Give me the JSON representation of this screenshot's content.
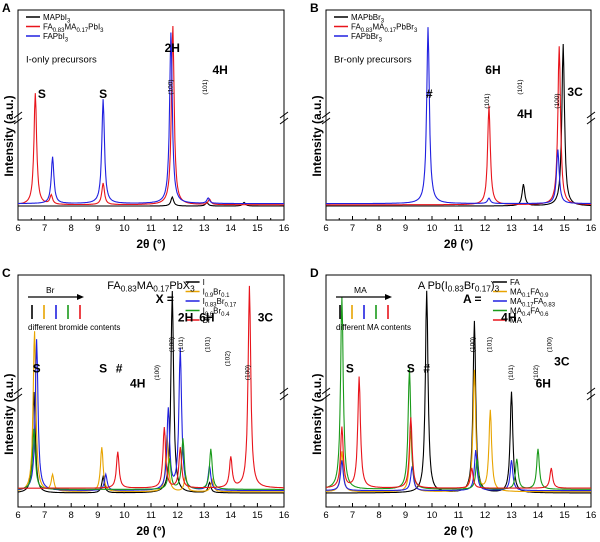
{
  "chart_data": [
    {
      "type": "line",
      "panel_label": "A",
      "xlabel": "2θ (°)",
      "ylabel": "Intensity (a.u.)",
      "xlim": [
        6,
        16
      ],
      "x_ticks": [
        "6",
        "7",
        "8",
        "9",
        "10",
        "11",
        "12",
        "13",
        "14",
        "15",
        "16"
      ],
      "axis_break": true,
      "legend": {
        "position": "top-left",
        "entries": [
          "MAPbI3",
          "FA0.83MA0.17PbI3",
          "FAPbI3"
        ]
      },
      "note": "I-only precursors",
      "series": [
        {
          "name": "MAPbI3",
          "color": "#000000",
          "peaks": [
            {
              "x": 11.8,
              "h": 0.05
            },
            {
              "x": 13.1,
              "h": 0.02
            },
            {
              "x": 14.5,
              "h": 0.02
            }
          ]
        },
        {
          "name": "FA0.83MA0.17PbI3",
          "color": "#e8141b",
          "peaks": [
            {
              "x": 6.65,
              "h": 0.62
            },
            {
              "x": 7.25,
              "h": 0.05
            },
            {
              "x": 9.2,
              "h": 0.12
            },
            {
              "x": 11.82,
              "h": 1.0
            },
            {
              "x": 13.2,
              "h": 0.03
            }
          ]
        },
        {
          "name": "FAPbI3",
          "color": "#2020e0",
          "peaks": [
            {
              "x": 7.3,
              "h": 0.26
            },
            {
              "x": 9.2,
              "h": 0.58
            },
            {
              "x": 11.75,
              "h": 0.95
            },
            {
              "x": 13.15,
              "h": 0.03
            }
          ]
        }
      ],
      "annotations": [
        {
          "text": "2H",
          "x": 11.8
        },
        {
          "text": "(100)",
          "x": 11.8
        },
        {
          "text": "S",
          "x": 6.9
        },
        {
          "text": "S",
          "x": 9.2
        },
        {
          "text": "(101)",
          "x": 13.1
        },
        {
          "text": "4H",
          "x": 13.6
        }
      ]
    },
    {
      "type": "line",
      "panel_label": "B",
      "xlabel": "2θ (°)",
      "ylabel": "Intensity (a.u.)",
      "xlim": [
        6,
        16
      ],
      "x_ticks": [
        "6",
        "7",
        "8",
        "9",
        "10",
        "11",
        "12",
        "13",
        "14",
        "15",
        "16"
      ],
      "axis_break": true,
      "legend": {
        "position": "top-left",
        "entries": [
          "MAPbBr3",
          "FA0.83MA0.17PbBr3",
          "FAPbBr3"
        ]
      },
      "note": "Br-only precursors",
      "series": [
        {
          "name": "MAPbBr3",
          "color": "#000000",
          "peaks": [
            {
              "x": 13.45,
              "h": 0.12
            },
            {
              "x": 14.95,
              "h": 0.9
            }
          ]
        },
        {
          "name": "FA0.83MA0.17PbBr3",
          "color": "#e8141b",
          "peaks": [
            {
              "x": 12.15,
              "h": 0.55
            },
            {
              "x": 14.8,
              "h": 0.88
            }
          ]
        },
        {
          "name": "FAPbBr3",
          "color": "#2020e0",
          "peaks": [
            {
              "x": 9.85,
              "h": 0.98
            },
            {
              "x": 12.15,
              "h": 0.03
            },
            {
              "x": 14.75,
              "h": 0.3
            }
          ]
        }
      ],
      "annotations": [
        {
          "text": "#",
          "x": 9.9
        },
        {
          "text": "6H",
          "x": 12.3
        },
        {
          "text": "(101)",
          "x": 12.15
        },
        {
          "text": "4H",
          "x": 13.5
        },
        {
          "text": "(101)",
          "x": 13.4
        },
        {
          "text": "(100)",
          "x": 14.8
        },
        {
          "text": "3C",
          "x": 15.4
        }
      ]
    },
    {
      "type": "line",
      "panel_label": "C",
      "title": "FA0.83MA0.17PbX3",
      "xlabel": "2θ (°)",
      "ylabel": "Intensity (a.u.)",
      "xlim": [
        6,
        16
      ],
      "x_ticks": [
        "6",
        "7",
        "8",
        "9",
        "10",
        "11",
        "12",
        "13",
        "14",
        "15",
        "16"
      ],
      "axis_break": true,
      "legend": {
        "position": "top-right",
        "label": "X =",
        "entries": [
          "I",
          "I0.9Br0.1",
          "I0.83Br0.17",
          "I0.6Br0.4",
          "Br"
        ]
      },
      "note": "different bromide contents",
      "arrow_label": "Br",
      "series": [
        {
          "name": "I",
          "color": "#000000",
          "peaks": [
            {
              "x": 6.6,
              "h": 0.5
            },
            {
              "x": 9.2,
              "h": 0.08
            },
            {
              "x": 11.8,
              "h": 1.0
            },
            {
              "x": 13.2,
              "h": 0.05
            }
          ]
        },
        {
          "name": "I0.9Br0.1",
          "color": "#e8a400",
          "peaks": [
            {
              "x": 6.62,
              "h": 0.8
            },
            {
              "x": 7.3,
              "h": 0.08
            },
            {
              "x": 9.15,
              "h": 0.22
            },
            {
              "x": 11.6,
              "h": 0.28
            },
            {
              "x": 12.3,
              "h": 0.08
            },
            {
              "x": 13.3,
              "h": 0.06
            }
          ]
        },
        {
          "name": "I0.83Br0.17",
          "color": "#2020e0",
          "peaks": [
            {
              "x": 6.7,
              "h": 0.75
            },
            {
              "x": 9.3,
              "h": 0.08
            },
            {
              "x": 11.65,
              "h": 0.4
            },
            {
              "x": 12.1,
              "h": 0.7
            },
            {
              "x": 13.2,
              "h": 0.12
            }
          ]
        },
        {
          "name": "I0.6Br0.4",
          "color": "#1a9a1a",
          "peaks": [
            {
              "x": 6.6,
              "h": 0.3
            },
            {
              "x": 11.7,
              "h": 0.15
            },
            {
              "x": 12.2,
              "h": 0.25
            },
            {
              "x": 13.25,
              "h": 0.2
            }
          ]
        },
        {
          "name": "Br",
          "color": "#e8141b",
          "peaks": [
            {
              "x": 9.75,
              "h": 0.18
            },
            {
              "x": 11.5,
              "h": 0.3
            },
            {
              "x": 12.1,
              "h": 0.2
            },
            {
              "x": 14.0,
              "h": 0.15
            },
            {
              "x": 14.7,
              "h": 1.0
            }
          ]
        }
      ],
      "annotations": [
        {
          "text": "S",
          "x": 6.7
        },
        {
          "text": "S",
          "x": 9.2
        },
        {
          "text": "#",
          "x": 9.8
        },
        {
          "text": "(100)",
          "x": 11.85
        },
        {
          "text": "2H",
          "x": 12.3
        },
        {
          "text": "(100)",
          "x": 11.3
        },
        {
          "text": "(101)",
          "x": 12.2
        },
        {
          "text": "4H",
          "x": 10.5
        },
        {
          "text": "6H",
          "x": 13.1
        },
        {
          "text": "(101)",
          "x": 13.2
        },
        {
          "text": "(102)",
          "x": 13.95
        },
        {
          "text": "(100)",
          "x": 14.7
        },
        {
          "text": "3C",
          "x": 15.3
        }
      ]
    },
    {
      "type": "line",
      "panel_label": "D",
      "title": "A Pb(I0.83Br0.17)3",
      "xlabel": "2θ (°)",
      "ylabel": "Intensity (a.u.)",
      "xlim": [
        6,
        16
      ],
      "x_ticks": [
        "6",
        "7",
        "8",
        "9",
        "10",
        "11",
        "12",
        "13",
        "14",
        "15",
        "16"
      ],
      "axis_break": true,
      "legend": {
        "position": "top-right",
        "label": "A =",
        "entries": [
          "FA",
          "MA0.1FA0.9",
          "MA0.17FA0.83",
          "MA0.4FA0.6",
          "MA"
        ]
      },
      "note": "different MA contents",
      "arrow_label": "MA",
      "series": [
        {
          "name": "FA",
          "color": "#000000",
          "peaks": [
            {
              "x": 9.8,
              "h": 1.0
            },
            {
              "x": 11.6,
              "h": 0.85
            },
            {
              "x": 13.0,
              "h": 0.5
            }
          ]
        },
        {
          "name": "MA0.1FA0.9",
          "color": "#e8a400",
          "peaks": [
            {
              "x": 6.6,
              "h": 0.2
            },
            {
              "x": 9.2,
              "h": 0.3
            },
            {
              "x": 11.6,
              "h": 0.6
            },
            {
              "x": 12.2,
              "h": 0.4
            }
          ]
        },
        {
          "name": "MA0.17FA0.83",
          "color": "#2020e0",
          "peaks": [
            {
              "x": 6.6,
              "h": 0.15
            },
            {
              "x": 9.25,
              "h": 0.12
            },
            {
              "x": 11.65,
              "h": 0.2
            },
            {
              "x": 13.0,
              "h": 0.15
            }
          ]
        },
        {
          "name": "MA0.4FA0.6",
          "color": "#1a9a1a",
          "peaks": [
            {
              "x": 6.6,
              "h": 0.95
            },
            {
              "x": 9.15,
              "h": 0.6
            },
            {
              "x": 11.7,
              "h": 0.15
            },
            {
              "x": 13.2,
              "h": 0.15
            },
            {
              "x": 14.0,
              "h": 0.2
            }
          ]
        },
        {
          "name": "MA",
          "color": "#e8141b",
          "peaks": [
            {
              "x": 6.6,
              "h": 0.3
            },
            {
              "x": 7.25,
              "h": 0.55
            },
            {
              "x": 9.2,
              "h": 0.35
            },
            {
              "x": 11.5,
              "h": 0.1
            },
            {
              "x": 14.5,
              "h": 0.1
            }
          ]
        }
      ],
      "annotations": [
        {
          "text": "S",
          "x": 6.9
        },
        {
          "text": "S",
          "x": 9.2
        },
        {
          "text": "#",
          "x": 9.8
        },
        {
          "text": "(100)",
          "x": 11.6
        },
        {
          "text": "4H",
          "x": 12.9
        },
        {
          "text": "(101)",
          "x": 13.05
        },
        {
          "text": "(101)",
          "x": 12.25
        },
        {
          "text": "6H",
          "x": 14.2
        },
        {
          "text": "(102)",
          "x": 14.0
        },
        {
          "text": "(100)",
          "x": 14.5
        },
        {
          "text": "3C",
          "x": 14.9
        }
      ]
    }
  ]
}
